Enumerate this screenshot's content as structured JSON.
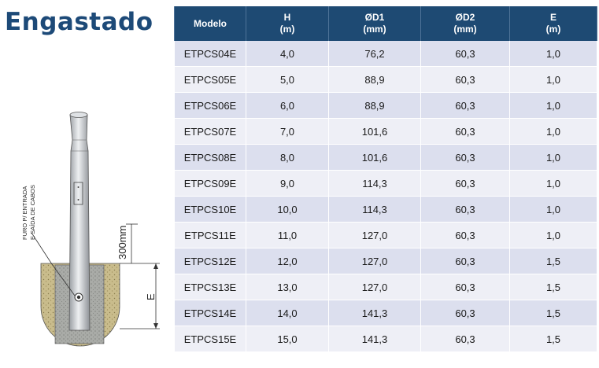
{
  "title": "Engastado",
  "diagram": {
    "hole_label_line1": "FURO P/ ENTRADA",
    "hole_label_line2": "E SAÍDA DE CABOS",
    "depth_label": "300mm",
    "embed_label": "E"
  },
  "table": {
    "headers": [
      {
        "line1": "Modelo",
        "line2": ""
      },
      {
        "line1": "H",
        "line2": "(m)"
      },
      {
        "line1": "ØD1",
        "line2": "(mm)"
      },
      {
        "line1": "ØD2",
        "line2": "(mm)"
      },
      {
        "line1": "E",
        "line2": "(m)"
      }
    ],
    "rows": [
      [
        "ETPCS04E",
        "4,0",
        "76,2",
        "60,3",
        "1,0"
      ],
      [
        "ETPCS05E",
        "5,0",
        "88,9",
        "60,3",
        "1,0"
      ],
      [
        "ETPCS06E",
        "6,0",
        "88,9",
        "60,3",
        "1,0"
      ],
      [
        "ETPCS07E",
        "7,0",
        "101,6",
        "60,3",
        "1,0"
      ],
      [
        "ETPCS08E",
        "8,0",
        "101,6",
        "60,3",
        "1,0"
      ],
      [
        "ETPCS09E",
        "9,0",
        "114,3",
        "60,3",
        "1,0"
      ],
      [
        "ETPCS10E",
        "10,0",
        "114,3",
        "60,3",
        "1,0"
      ],
      [
        "ETPCS11E",
        "11,0",
        "127,0",
        "60,3",
        "1,0"
      ],
      [
        "ETPCS12E",
        "12,0",
        "127,0",
        "60,3",
        "1,5"
      ],
      [
        "ETPCS13E",
        "13,0",
        "127,0",
        "60,3",
        "1,5"
      ],
      [
        "ETPCS14E",
        "14,0",
        "141,3",
        "60,3",
        "1,5"
      ],
      [
        "ETPCS15E",
        "15,0",
        "141,3",
        "60,3",
        "1,5"
      ]
    ]
  },
  "colors": {
    "header_bg": "#1e4a73",
    "title": "#1d4a78",
    "row_odd": "#dcdfee",
    "row_even": "#eeeff6",
    "soil": "#c7b98a",
    "concrete": "#a8aaa6"
  }
}
